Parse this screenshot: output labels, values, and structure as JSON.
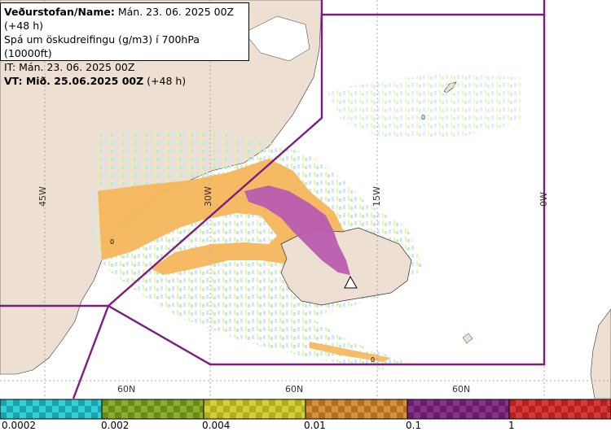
{
  "header": {
    "line1_label": "Veðurstofan/Name:",
    "line1_value": "Mán. 23. 06. 2025 00Z (+48 h)",
    "line2": "Spá um öskudreifingu (g/m3) í 700hPa (10000ft)",
    "line3": "IT: Mán. 23. 06. 2025 00Z",
    "line4_label": "VT: Mið. 25.06.2025 00Z",
    "line4_value": "(+48 h)"
  },
  "map": {
    "longitude_labels": [
      "45W",
      "30W",
      "15W",
      "0W"
    ],
    "latitude_labels": [
      "60N",
      "60N",
      "60N"
    ],
    "contour_labels": [
      "0",
      "0",
      "0"
    ],
    "volcano_icon": "volcano-triangle-icon",
    "colors": {
      "land": "#eedfd3",
      "sea": "#ffffff",
      "fir_boundary": "#7b1c80",
      "ash_low": "#f5b65c",
      "ash_high": "#b95cb0",
      "grid": "#aaaaaa"
    }
  },
  "legend": {
    "segments": [
      {
        "color": "#33cfd6",
        "color_dark": "#1aa3ab"
      },
      {
        "color": "#8bae2c",
        "color_dark": "#6b8a1c"
      },
      {
        "color": "#d3d13a",
        "color_dark": "#b3ae20"
      },
      {
        "color": "#d5913c",
        "color_dark": "#b06f22"
      },
      {
        "color": "#8a3289",
        "color_dark": "#66206a"
      },
      {
        "color": "#d63a3a",
        "color_dark": "#b22020"
      }
    ],
    "tick_labels": [
      "0.0002",
      "0.002",
      "0.004",
      "0.01",
      "0.1",
      "1"
    ]
  }
}
